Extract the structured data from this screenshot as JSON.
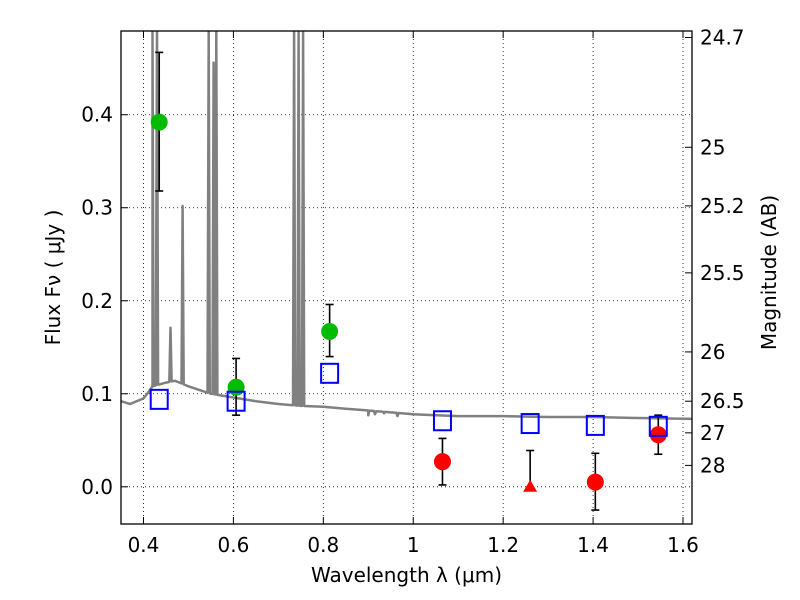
{
  "chart_data": {
    "type": "scatter",
    "title": "",
    "xlabel": "Wavelength  λ (μm)",
    "ylabel": "Flux  Fν  ( μJy )",
    "y2label": "Magnitude (AB)",
    "xlim": [
      0.35,
      1.62
    ],
    "ylim": [
      -0.04,
      0.49
    ],
    "grid": true,
    "x_ticks": [
      0.4,
      0.6,
      0.8,
      1.0,
      1.2,
      1.4,
      1.6
    ],
    "x_tick_labels": [
      "0.4",
      "0.6",
      "0.8",
      "1",
      "1.2",
      "1.4",
      "1.6"
    ],
    "y_ticks": [
      0.0,
      0.1,
      0.2,
      0.3,
      0.4
    ],
    "y_tick_labels": [
      "0.0",
      "0.1",
      "0.2",
      "0.3",
      "0.4"
    ],
    "y2_ticks": [
      {
        "label": "24.7",
        "flux": 0.483
      },
      {
        "label": "25",
        "flux": 0.365
      },
      {
        "label": "25.2",
        "flux": 0.302
      },
      {
        "label": "25.5",
        "flux": 0.23
      },
      {
        "label": "26",
        "flux": 0.145
      },
      {
        "label": "26.5",
        "flux": 0.092
      },
      {
        "label": "27",
        "flux": 0.058
      },
      {
        "label": "28",
        "flux": 0.023
      }
    ],
    "series": [
      {
        "marker": "circle",
        "color": "#00bb00",
        "points": [
          {
            "x": 0.435,
            "y": 0.392,
            "err_low": 0.318,
            "err_high": 0.467
          },
          {
            "x": 0.606,
            "y": 0.107,
            "err_low": 0.077,
            "err_high": 0.138
          },
          {
            "x": 0.814,
            "y": 0.167,
            "err_low": 0.14,
            "err_high": 0.196
          }
        ]
      },
      {
        "marker": "circle",
        "color": "#ff0000",
        "points": [
          {
            "x": 1.065,
            "y": 0.027,
            "err_low": 0.002,
            "err_high": 0.052
          },
          {
            "x": 1.405,
            "y": 0.005,
            "err_low": -0.025,
            "err_high": 0.036
          },
          {
            "x": 1.545,
            "y": 0.056,
            "err_low": 0.035,
            "err_high": 0.077
          }
        ]
      },
      {
        "marker": "triangle",
        "color": "#ff0000",
        "points": [
          {
            "x": 1.26,
            "y": 0.0,
            "err_low": 0.0,
            "err_high": 0.039
          }
        ]
      },
      {
        "marker": "open-square",
        "color": "#0000ff",
        "points": [
          {
            "x": 0.435,
            "y": 0.094
          },
          {
            "x": 0.606,
            "y": 0.092
          },
          {
            "x": 0.814,
            "y": 0.122
          },
          {
            "x": 1.065,
            "y": 0.071
          },
          {
            "x": 1.26,
            "y": 0.068
          },
          {
            "x": 1.405,
            "y": 0.066
          },
          {
            "x": 1.545,
            "y": 0.065
          }
        ]
      }
    ],
    "model_spectrum": {
      "color": "#808080",
      "continuum": [
        {
          "x": 0.35,
          "y": 0.092
        },
        {
          "x": 0.37,
          "y": 0.089
        },
        {
          "x": 0.4,
          "y": 0.095
        },
        {
          "x": 0.41,
          "y": 0.101
        },
        {
          "x": 0.42,
          "y": 0.108
        },
        {
          "x": 0.45,
          "y": 0.112
        },
        {
          "x": 0.47,
          "y": 0.114
        },
        {
          "x": 0.5,
          "y": 0.108
        },
        {
          "x": 0.55,
          "y": 0.1
        },
        {
          "x": 0.6,
          "y": 0.096
        },
        {
          "x": 0.65,
          "y": 0.092
        },
        {
          "x": 0.7,
          "y": 0.089
        },
        {
          "x": 0.75,
          "y": 0.087
        },
        {
          "x": 0.8,
          "y": 0.086
        },
        {
          "x": 0.85,
          "y": 0.084
        },
        {
          "x": 0.9,
          "y": 0.082
        },
        {
          "x": 0.95,
          "y": 0.08
        },
        {
          "x": 1.0,
          "y": 0.078
        },
        {
          "x": 1.05,
          "y": 0.077
        },
        {
          "x": 1.1,
          "y": 0.076
        },
        {
          "x": 1.2,
          "y": 0.076
        },
        {
          "x": 1.3,
          "y": 0.075
        },
        {
          "x": 1.4,
          "y": 0.075
        },
        {
          "x": 1.5,
          "y": 0.074
        },
        {
          "x": 1.62,
          "y": 0.073
        }
      ],
      "emission_lines": [
        {
          "x": 0.42,
          "peak": 0.49
        },
        {
          "x": 0.43,
          "peak": 0.49
        },
        {
          "x": 0.46,
          "peak": 0.171
        },
        {
          "x": 0.487,
          "peak": 0.302
        },
        {
          "x": 0.545,
          "peak": 0.49
        },
        {
          "x": 0.556,
          "peak": 0.456
        },
        {
          "x": 0.562,
          "peak": 0.49
        },
        {
          "x": 0.735,
          "peak": 0.49
        },
        {
          "x": 0.745,
          "peak": 0.49
        },
        {
          "x": 0.755,
          "peak": 0.49
        }
      ],
      "absorption_features": [
        {
          "x": 0.9,
          "dip": 0.077
        },
        {
          "x": 0.915,
          "dip": 0.078
        },
        {
          "x": 0.935,
          "dip": 0.079
        },
        {
          "x": 0.955,
          "dip": 0.08
        },
        {
          "x": 0.965,
          "dip": 0.076
        }
      ]
    }
  }
}
